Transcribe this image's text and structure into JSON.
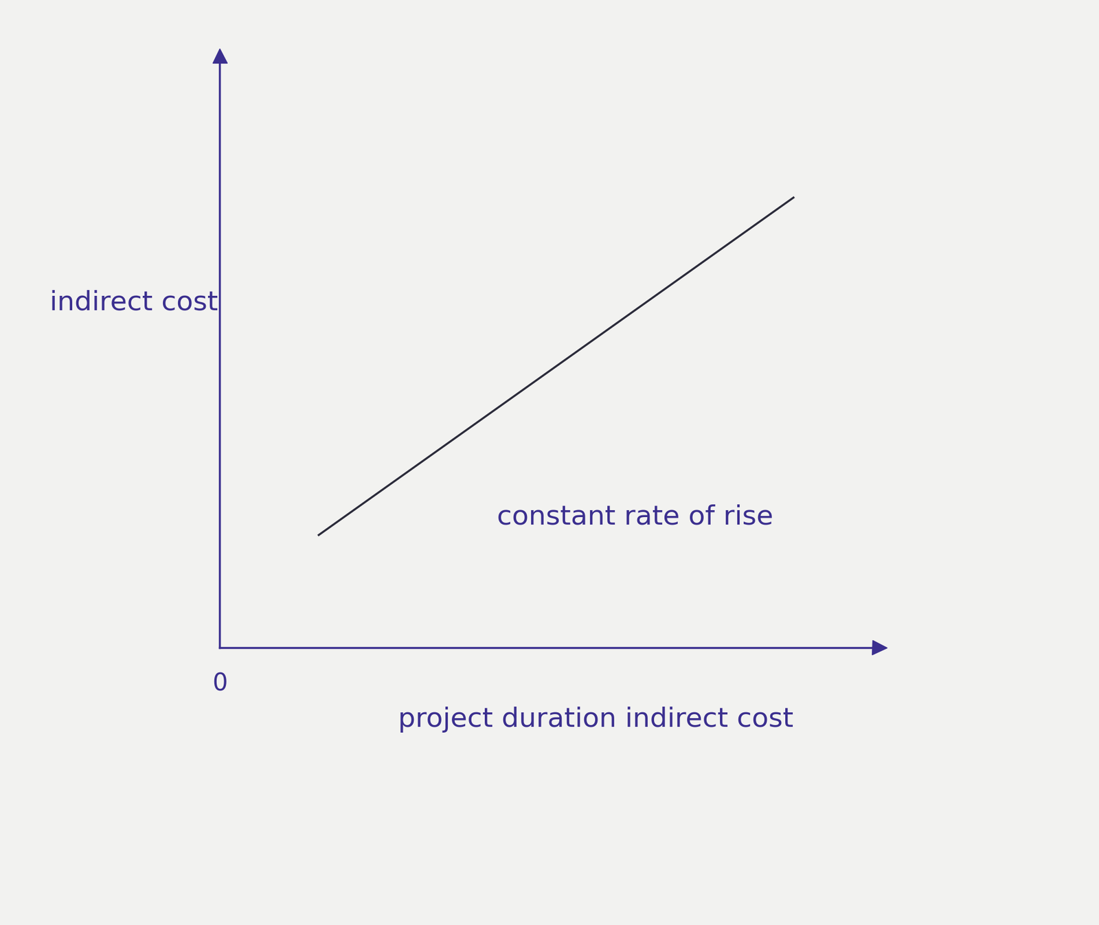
{
  "chart_data": {
    "type": "line",
    "x": [
      1.5,
      8.7
    ],
    "values": [
      1.9,
      7.6
    ],
    "xlabel": "project duration indirect cost",
    "ylabel": "indirect cost",
    "annotations": [
      "constant rate of rise"
    ],
    "xlim": [
      0,
      10
    ],
    "ylim": [
      0,
      10
    ],
    "xticks": [
      0
    ],
    "yticks": [],
    "tick_labels": "x",
    "color": "#2b2b3a"
  }
}
